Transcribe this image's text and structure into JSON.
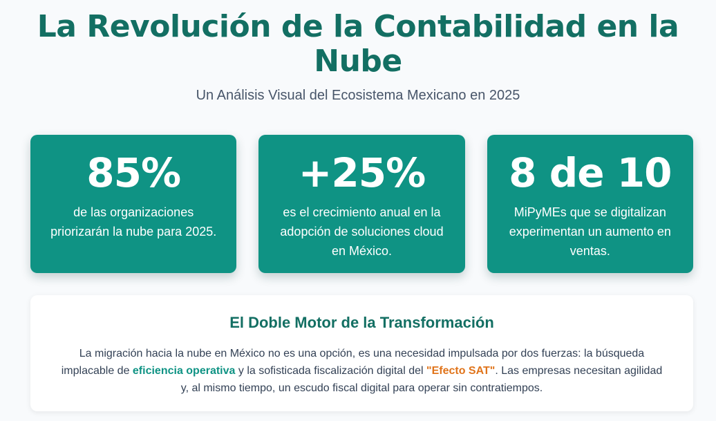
{
  "header": {
    "title": "La Revolución de la Contabilidad en la Nube",
    "subtitle": "Un Análisis Visual del Ecosistema Mexicano en 2025"
  },
  "stats": [
    {
      "value": "85%",
      "description": "de las organizaciones priorizarán la nube para 2025."
    },
    {
      "value": "+25%",
      "description": "es el crecimiento anual en la adopción de soluciones cloud en México."
    },
    {
      "value": "8 de 10",
      "description": "MiPyMEs que se digitalizan experimentan un aumento en ventas."
    }
  ],
  "engine": {
    "title": "El Doble Motor de la Transformación",
    "text_part1": "La migración hacia la nube en México no es una opción, es una necesidad impulsada por dos fuerzas: la búsqueda implacable de ",
    "highlight1": "eficiencia operativa",
    "text_part2": " y la sofisticada fiscalización digital del ",
    "highlight2": "\"Efecto SAT\"",
    "text_part3": ". Las empresas necesitan agilidad y, al mismo tiempo, un escudo fiscal digital para operar sin contratiempos."
  },
  "colors": {
    "primary": "#136f63",
    "card": "#0f9384",
    "accent_orange": "#e0741b",
    "background": "#f8fafc"
  }
}
